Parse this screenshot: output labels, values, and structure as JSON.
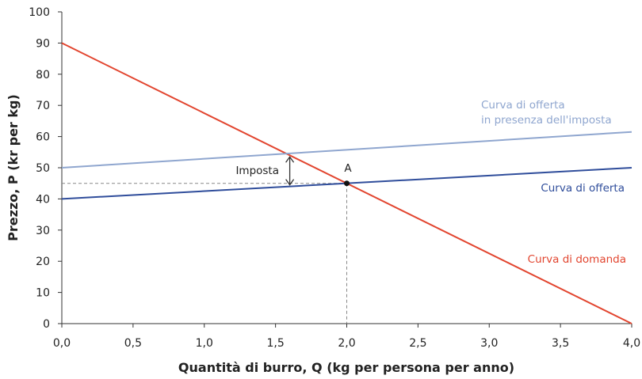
{
  "chart_data": {
    "type": "line",
    "xlabel": "Quantità di burro, Q (kg per persona per anno)",
    "ylabel": "Prezzo, P (kr per kg)",
    "xlim": [
      0,
      4
    ],
    "ylim": [
      0,
      100
    ],
    "xticks": [
      "0,0",
      "0,5",
      "1,0",
      "1,5",
      "2,0",
      "2,5",
      "3,0",
      "3,5",
      "4,0"
    ],
    "yticks": [
      "0",
      "10",
      "20",
      "30",
      "40",
      "50",
      "60",
      "70",
      "80",
      "90",
      "100"
    ],
    "grid": false,
    "series": [
      {
        "name": "Curva di domanda",
        "color": "#e2452f",
        "x": [
          0,
          4
        ],
        "y": [
          90,
          0
        ]
      },
      {
        "name": "Curva di offerta",
        "color": "#2f4d9b",
        "x": [
          0,
          4
        ],
        "y": [
          40,
          50
        ]
      },
      {
        "name": "Curva di offerta in presenza dell'imposta",
        "name_lines": [
          "Curva di offerta",
          "in presenza dell'imposta"
        ],
        "color": "#8fa6cf",
        "x": [
          0,
          4
        ],
        "y": [
          50,
          61.5
        ]
      }
    ],
    "annotations": {
      "point": {
        "label": "A",
        "x": 2.0,
        "y": 45
      },
      "tax": {
        "label": "Imposta",
        "x": 1.6,
        "y_from": 44,
        "y_to": 54
      }
    }
  }
}
